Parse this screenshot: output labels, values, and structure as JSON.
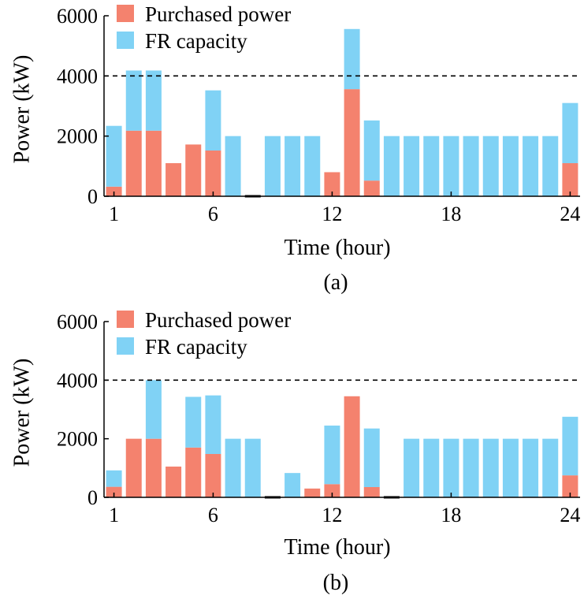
{
  "colors": {
    "purchased": "#F4826E",
    "fr": "#80D2F5",
    "axis": "#000000",
    "reference": "#000000"
  },
  "chart_data": [
    {
      "type": "bar",
      "stacked": true,
      "caption": "(a)",
      "xlabel": "Time (hour)",
      "ylabel": "Power (kW)",
      "ylim": [
        0,
        6000
      ],
      "xlim": [
        0.5,
        24.5
      ],
      "yticks": [
        0,
        2000,
        4000,
        6000
      ],
      "xticks": [
        1,
        6,
        12,
        18,
        24
      ],
      "reference_line": {
        "y": 4000,
        "style": "dashed"
      },
      "legend_position": "top-left",
      "x": [
        1,
        2,
        3,
        4,
        5,
        6,
        7,
        8,
        9,
        10,
        11,
        12,
        13,
        14,
        15,
        16,
        17,
        18,
        19,
        20,
        21,
        22,
        23,
        24
      ],
      "series": [
        {
          "name": "Purchased power",
          "values": [
            320,
            2180,
            2180,
            1100,
            1720,
            1520,
            0,
            0,
            0,
            0,
            0,
            800,
            3560,
            520,
            0,
            0,
            0,
            0,
            0,
            0,
            0,
            0,
            0,
            1100
          ]
        },
        {
          "name": "FR capacity",
          "values": [
            2020,
            2000,
            2000,
            0,
            0,
            2000,
            2000,
            0,
            2000,
            2000,
            2000,
            0,
            2000,
            2000,
            2000,
            2000,
            2000,
            2000,
            2000,
            2000,
            2000,
            2000,
            2000,
            2000
          ]
        }
      ]
    },
    {
      "type": "bar",
      "stacked": true,
      "caption": "(b)",
      "xlabel": "Time (hour)",
      "ylabel": "Power (kW)",
      "ylim": [
        0,
        6000
      ],
      "xlim": [
        0.5,
        24.5
      ],
      "yticks": [
        0,
        2000,
        4000,
        6000
      ],
      "xticks": [
        1,
        6,
        12,
        18,
        24
      ],
      "reference_line": {
        "y": 4000,
        "style": "dashed"
      },
      "legend_position": "top-left",
      "x": [
        1,
        2,
        3,
        4,
        5,
        6,
        7,
        8,
        9,
        10,
        11,
        12,
        13,
        14,
        15,
        16,
        17,
        18,
        19,
        20,
        21,
        22,
        23,
        24
      ],
      "series": [
        {
          "name": "Purchased power",
          "values": [
            360,
            2000,
            2000,
            1050,
            1700,
            1480,
            0,
            0,
            0,
            0,
            300,
            450,
            3450,
            350,
            0,
            0,
            0,
            0,
            0,
            0,
            0,
            0,
            0,
            750
          ]
        },
        {
          "name": "FR capacity",
          "values": [
            560,
            0,
            2000,
            0,
            1730,
            2000,
            2000,
            2000,
            0,
            830,
            0,
            2000,
            0,
            2000,
            0,
            2000,
            2000,
            2000,
            2000,
            2000,
            2000,
            2000,
            2000,
            2000
          ]
        }
      ]
    }
  ]
}
